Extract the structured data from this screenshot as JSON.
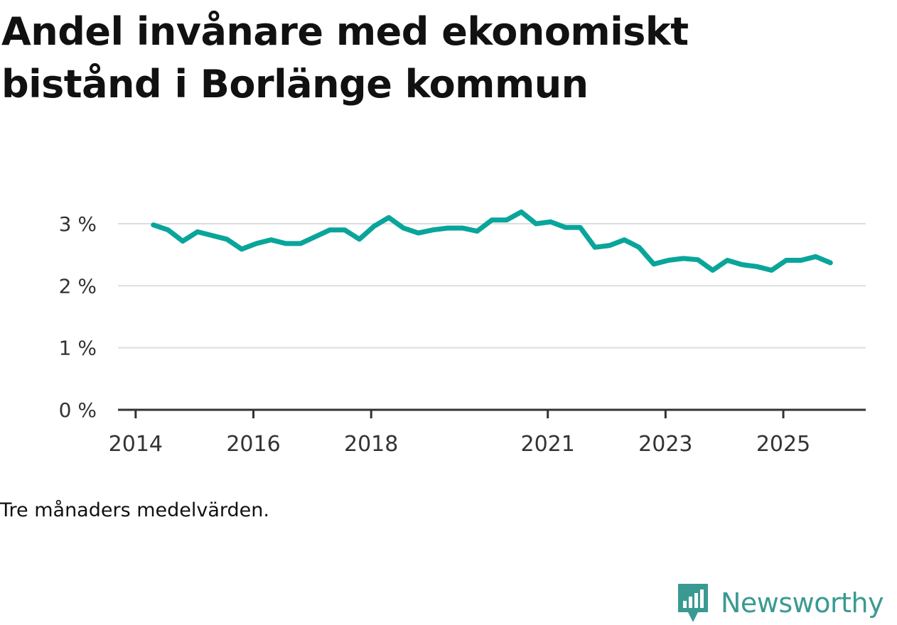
{
  "title": "Andel invånare med ekonomiskt bistånd i Borlänge kommun",
  "note": "Tre månaders medelvärden.",
  "brand": {
    "name": "Newsworthy",
    "icon": "newsworthy-logo-icon",
    "color": "#3a9a92"
  },
  "colors": {
    "line": "#0aa59a",
    "grid": "#dddddd",
    "axis": "#333333"
  },
  "chart_data": {
    "type": "line",
    "title": "Andel invånare med ekonomiskt bistånd i Borlänge kommun",
    "xlabel": "",
    "ylabel": "",
    "ylim": [
      0,
      3
    ],
    "xlim": [
      2013.7,
      2026.4
    ],
    "y_ticks": [
      {
        "value": 0,
        "label": "0 %"
      },
      {
        "value": 1,
        "label": "1 %"
      },
      {
        "value": 2,
        "label": "2 %"
      },
      {
        "value": 3,
        "label": "3 %"
      }
    ],
    "x_ticks": [
      {
        "value": 2014,
        "label": "2014"
      },
      {
        "value": 2016,
        "label": "2016"
      },
      {
        "value": 2018,
        "label": "2018"
      },
      {
        "value": 2021,
        "label": "2021"
      },
      {
        "value": 2023,
        "label": "2023"
      },
      {
        "value": 2025,
        "label": "2025"
      }
    ],
    "grid": true,
    "series": [
      {
        "name": "Andel invånare med ekonomiskt bistånd",
        "x": [
          2014.3,
          2014.55,
          2014.8,
          2015.05,
          2015.3,
          2015.55,
          2015.8,
          2016.05,
          2016.3,
          2016.55,
          2016.8,
          2017.05,
          2017.3,
          2017.55,
          2017.8,
          2018.05,
          2018.3,
          2018.55,
          2018.8,
          2019.05,
          2019.3,
          2019.55,
          2019.8,
          2020.05,
          2020.3,
          2020.55,
          2020.8,
          2021.05,
          2021.3,
          2021.55,
          2021.8,
          2022.05,
          2022.3,
          2022.55,
          2022.8,
          2023.05,
          2023.3,
          2023.55,
          2023.8,
          2024.05,
          2024.3,
          2024.55,
          2024.8,
          2025.05,
          2025.3,
          2025.55,
          2025.8
        ],
        "values": [
          2.98,
          2.9,
          2.72,
          2.87,
          2.81,
          2.75,
          2.59,
          2.68,
          2.74,
          2.68,
          2.68,
          2.79,
          2.9,
          2.9,
          2.75,
          2.96,
          3.1,
          2.93,
          2.85,
          2.9,
          2.93,
          2.93,
          2.88,
          3.06,
          3.06,
          3.19,
          3.0,
          3.03,
          2.94,
          2.94,
          2.62,
          2.65,
          2.74,
          2.62,
          2.35,
          2.41,
          2.44,
          2.42,
          2.25,
          2.41,
          2.34,
          2.31,
          2.25,
          2.41,
          2.41,
          2.47,
          2.37
        ]
      }
    ]
  }
}
